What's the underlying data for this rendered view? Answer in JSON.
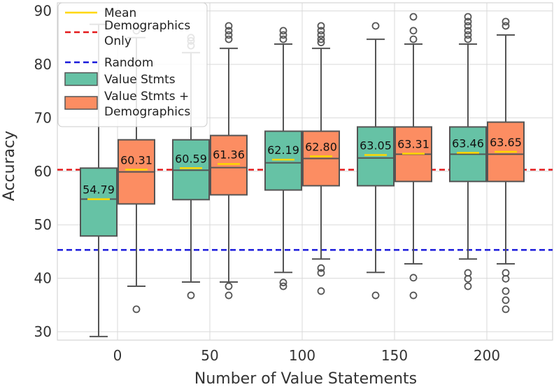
{
  "chart_data": {
    "type": "box",
    "xlabel": "Number of Value Statements",
    "ylabel": "Accuracy",
    "categories": [
      "0",
      "50",
      "100",
      "150",
      "200"
    ],
    "ylim": [
      28,
      91
    ],
    "yticks": [
      30,
      40,
      50,
      60,
      70,
      80,
      90
    ],
    "grid": true,
    "reference_lines": [
      {
        "name": "Demographics Only",
        "value": 60.3,
        "color": "#e41a1c",
        "style": "dashed"
      },
      {
        "name": "Random",
        "value": 45.3,
        "color": "#1a1adb",
        "style": "dashed"
      }
    ],
    "series": [
      {
        "name": "Value Stmts",
        "color": "#66c2a5",
        "boxes": [
          {
            "whisker_low": 29.1,
            "q1": 47.9,
            "median": 54.8,
            "q3": 60.6,
            "whisker_high": 87.5,
            "mean": 54.79,
            "mean_label": "54.79",
            "outliers": []
          },
          {
            "whisker_low": 39.3,
            "q1": 54.7,
            "median": 60.2,
            "q3": 65.9,
            "whisker_high": 82.2,
            "mean": 60.59,
            "mean_label": "60.59",
            "outliers": [
              36.8,
              83.5,
              84.4,
              85.0
            ]
          },
          {
            "whisker_low": 41.1,
            "q1": 56.5,
            "median": 61.6,
            "q3": 67.5,
            "whisker_high": 83.8,
            "mean": 62.19,
            "mean_label": "62.19",
            "outliers": [
              38.5,
              39.2,
              84.7,
              85.5,
              86.3
            ]
          },
          {
            "whisker_low": 41.1,
            "q1": 57.3,
            "median": 62.5,
            "q3": 68.3,
            "whisker_high": 84.7,
            "mean": 63.05,
            "mean_label": "63.05",
            "outliers": [
              36.8,
              87.2
            ]
          },
          {
            "whisker_low": 43.6,
            "q1": 58.1,
            "median": 63.2,
            "q3": 68.3,
            "whisker_high": 83.8,
            "mean": 63.46,
            "mean_label": "63.46",
            "outliers": [
              38.5,
              39.9,
              41.0,
              84.7,
              85.5,
              86.3,
              87.2,
              88.0,
              88.9
            ]
          }
        ]
      },
      {
        "name": "Value Stmts + Demographics",
        "color": "#fc8d62",
        "boxes": [
          {
            "whisker_low": 38.5,
            "q1": 53.9,
            "median": 59.9,
            "q3": 65.9,
            "whisker_high": 85.0,
            "mean": 60.31,
            "mean_label": "60.31",
            "outliers": [
              34.2,
              86.3,
              87.2
            ]
          },
          {
            "whisker_low": 39.3,
            "q1": 55.6,
            "median": 60.7,
            "q3": 66.7,
            "whisker_high": 83.0,
            "mean": 61.36,
            "mean_label": "61.36",
            "outliers": [
              36.8,
              38.5,
              84.7,
              85.5,
              86.3,
              87.2
            ]
          },
          {
            "whisker_low": 43.6,
            "q1": 57.3,
            "median": 62.4,
            "q3": 67.5,
            "whisker_high": 83.0,
            "mean": 62.8,
            "mean_label": "62.80",
            "outliers": [
              37.6,
              41.0,
              41.9,
              84.1,
              84.7,
              85.5,
              86.3,
              87.2
            ]
          },
          {
            "whisker_low": 42.7,
            "q1": 58.1,
            "median": 63.2,
            "q3": 68.3,
            "whisker_high": 83.8,
            "mean": 63.31,
            "mean_label": "63.31",
            "outliers": [
              36.8,
              40.1,
              84.7,
              86.3,
              88.9
            ]
          },
          {
            "whisker_low": 42.7,
            "q1": 58.1,
            "median": 63.2,
            "q3": 69.2,
            "whisker_high": 85.5,
            "mean": 63.65,
            "mean_label": "63.65",
            "outliers": [
              34.2,
              35.9,
              37.6,
              39.9,
              41.0,
              87.2,
              88.0
            ]
          }
        ]
      }
    ],
    "mean_marker": {
      "name": "Mean",
      "color": "#ffd700"
    },
    "legend": {
      "position": "top-left",
      "entries": [
        {
          "key": "mean",
          "label_lines": [
            "Mean"
          ]
        },
        {
          "key": "demographics",
          "label_lines": [
            "Demographics",
            "Only"
          ]
        },
        {
          "key": "random",
          "label_lines": [
            "Random"
          ]
        },
        {
          "key": "value_stmts",
          "label_lines": [
            "Value Stmts"
          ]
        },
        {
          "key": "value_demo",
          "label_lines": [
            "Value Stmts +",
            "Demographics"
          ]
        }
      ]
    }
  }
}
